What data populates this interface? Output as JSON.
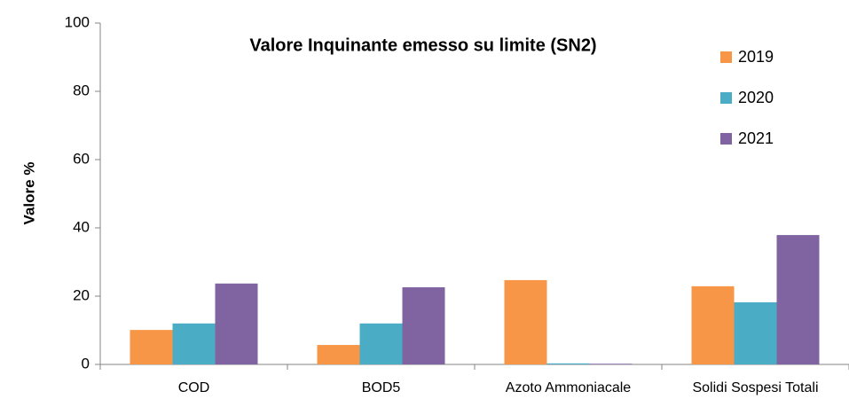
{
  "chart_data": {
    "type": "bar",
    "title": "Valore Inquinante emesso su limite (SN2)",
    "y_label": "Valore %",
    "categories": [
      "COD",
      "BOD5",
      "Azoto Ammoniacale",
      "Solidi Sospesi Totali"
    ],
    "series": [
      {
        "name": "2019",
        "color": "#f79646",
        "values": [
          10.1,
          5.7,
          24.7,
          22.9
        ]
      },
      {
        "name": "2020",
        "color": "#4bacc6",
        "values": [
          12,
          12,
          0.3,
          18.2
        ]
      },
      {
        "name": "2021",
        "color": "#8064a2",
        "values": [
          23.7,
          22.6,
          0.2,
          37.9
        ]
      }
    ],
    "ylim": [
      0,
      100
    ],
    "yticks": [
      0,
      20,
      40,
      60,
      80,
      100
    ],
    "grid": false,
    "legend": "right"
  }
}
